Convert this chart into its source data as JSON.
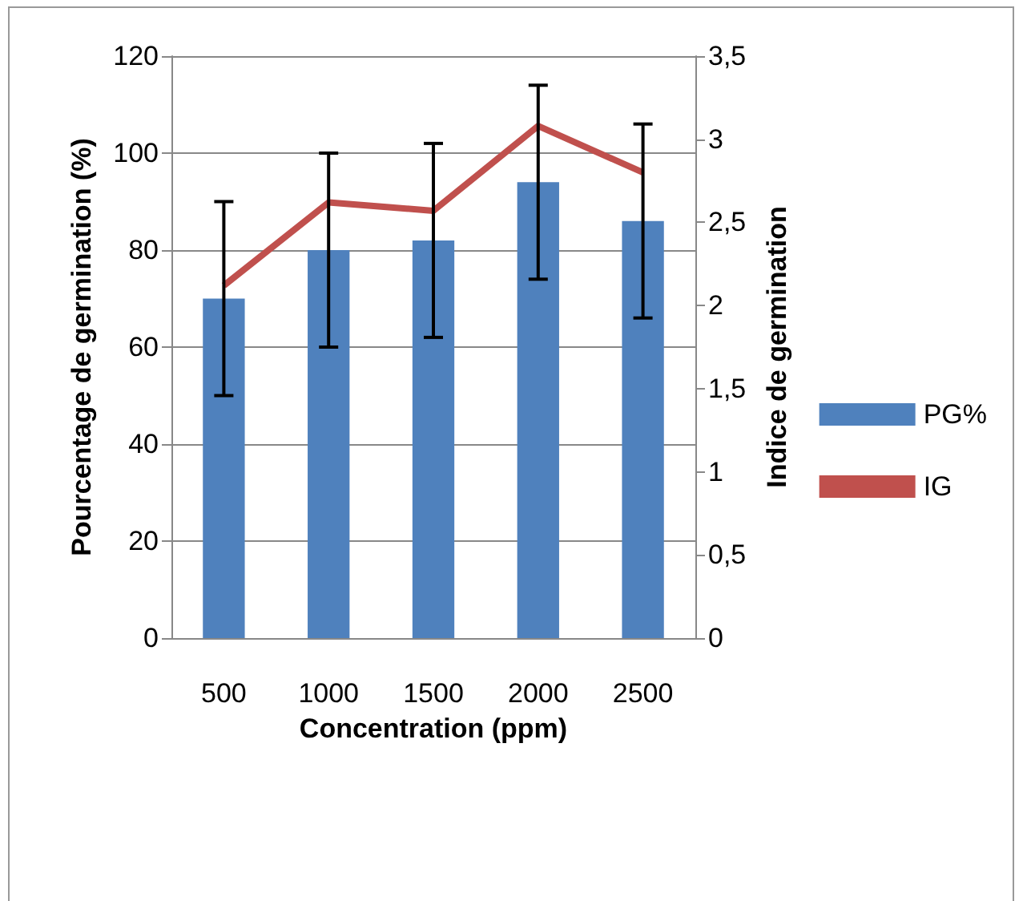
{
  "chart_data": {
    "type": "bar",
    "xlabel": "Concentration (ppm)",
    "ylabel": "Pourcentage de germination (%)",
    "y2label": "Indice de germination",
    "categories": [
      "500",
      "1000",
      "1500",
      "2000",
      "2500"
    ],
    "series": [
      {
        "name": "PG%",
        "color": "#4f81bd",
        "values": [
          70,
          80,
          82,
          94,
          86
        ],
        "errors": [
          20,
          20,
          20,
          20,
          20
        ]
      },
      {
        "name": "IG",
        "type": "line",
        "axis": "y2",
        "color": "#c0504d",
        "values": [
          2.12,
          2.62,
          2.57,
          3.08,
          2.8
        ]
      }
    ],
    "ylim": [
      0,
      120
    ],
    "yticks": [
      0,
      20,
      40,
      60,
      80,
      100,
      120
    ],
    "y2lim": [
      0,
      3.5
    ],
    "y2ticks": [
      {
        "value": 0,
        "label": "0"
      },
      {
        "value": 0.5,
        "label": "0,5"
      },
      {
        "value": 1,
        "label": "1"
      },
      {
        "value": 1.5,
        "label": "1,5"
      },
      {
        "value": 2,
        "label": "2"
      },
      {
        "value": 2.5,
        "label": "2,5"
      },
      {
        "value": 3,
        "label": "3"
      },
      {
        "value": 3.5,
        "label": "3,5"
      }
    ],
    "grid": "y",
    "legend": "right",
    "marker": "none"
  }
}
